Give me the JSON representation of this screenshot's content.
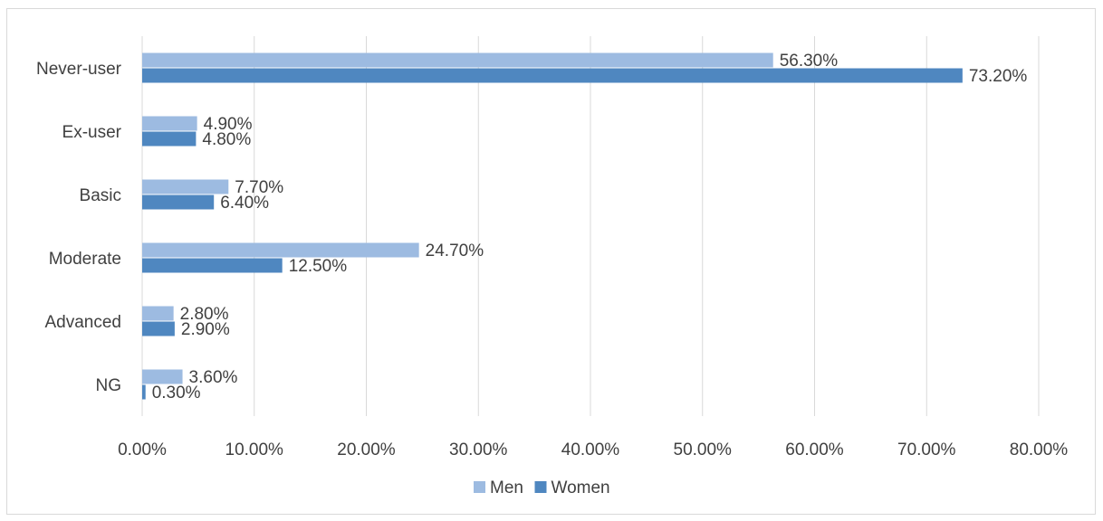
{
  "chart_data": {
    "type": "bar",
    "orientation": "horizontal",
    "title": "",
    "xlabel": "",
    "ylabel": "",
    "categories": [
      "Never-user",
      "Ex-user",
      "Basic",
      "Moderate",
      "Advanced",
      "NG"
    ],
    "series": [
      {
        "name": "Men",
        "color": "#9dbbe1",
        "values": [
          56.3,
          4.9,
          7.7,
          24.7,
          2.8,
          3.6
        ],
        "labels": [
          "56.30%",
          "4.90%",
          "7.70%",
          "24.70%",
          "2.80%",
          "3.60%"
        ]
      },
      {
        "name": "Women",
        "color": "#4f87c0",
        "values": [
          73.2,
          4.8,
          6.4,
          12.5,
          2.9,
          0.3
        ],
        "labels": [
          "73.20%",
          "4.80%",
          "6.40%",
          "12.50%",
          "2.90%",
          "0.30%"
        ]
      }
    ],
    "xlim": [
      0,
      80
    ],
    "xticks": [
      0,
      10,
      20,
      30,
      40,
      50,
      60,
      70,
      80
    ],
    "xtick_labels": [
      "0.00%",
      "10.00%",
      "20.00%",
      "30.00%",
      "40.00%",
      "50.00%",
      "60.00%",
      "70.00%",
      "80.00%"
    ],
    "grid": "vertical",
    "legend": "bottom",
    "colors": {
      "grid": "#d9d9d9",
      "text": "#404040",
      "border": "#d9d9d9"
    }
  }
}
